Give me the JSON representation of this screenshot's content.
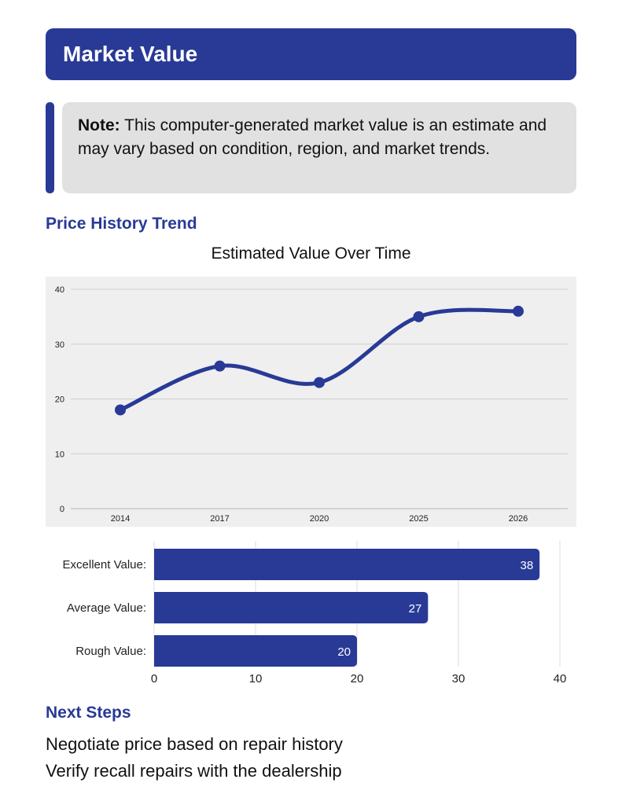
{
  "header": {
    "title": "Market Value"
  },
  "note": {
    "label": "Note:",
    "text": "This computer-generated market value is an estimate and may vary based on condition, region, and market trends."
  },
  "price_history": {
    "section_title": "Price History Trend"
  },
  "next_steps": {
    "section_title": "Next Steps",
    "items": [
      "Negotiate price based on repair history",
      "Verify recall repairs with the dealership"
    ]
  },
  "colors": {
    "accent": "#283a96",
    "panel": "#efefef",
    "note_bg": "#e1e1e1"
  },
  "chart_data": [
    {
      "type": "line",
      "title": "Estimated Value Over Time",
      "x": [
        "2014",
        "2017",
        "2020",
        "2025",
        "2026"
      ],
      "series": [
        {
          "values": [
            18,
            26,
            23,
            35,
            36
          ]
        }
      ],
      "ylim": [
        0,
        40
      ],
      "yticks": [
        0,
        10,
        20,
        30,
        40
      ],
      "grid": true,
      "smooth": true
    },
    {
      "type": "bar",
      "orientation": "horizontal",
      "categories": [
        "Excellent Value:",
        "Average Value:",
        "Rough Value:"
      ],
      "values": [
        38,
        27,
        20
      ],
      "xlim": [
        0,
        40
      ],
      "xticks": [
        0,
        10,
        20,
        30,
        40
      ],
      "grid": true
    }
  ]
}
